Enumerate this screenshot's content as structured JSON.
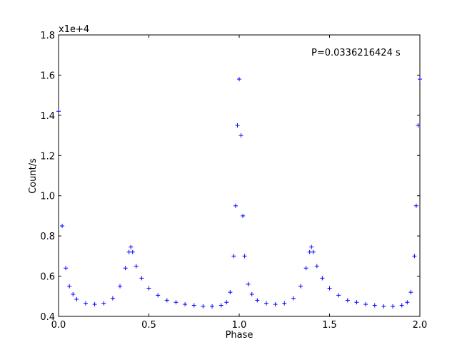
{
  "chart_data": {
    "type": "scatter",
    "title": "",
    "xlabel": "Phase",
    "ylabel": "Count/s",
    "y_scale_label": "x1e+4",
    "annotation": "P=0.0336216424 s",
    "xlim": [
      0.0,
      2.0
    ],
    "ylim": [
      0.4,
      1.8
    ],
    "x_ticks": [
      0.0,
      0.5,
      1.0,
      1.5,
      2.0
    ],
    "x_tick_labels": [
      "0.0",
      "0.5",
      "1.0",
      "1.5",
      "2.0"
    ],
    "y_ticks": [
      0.4,
      0.6,
      0.8,
      1.0,
      1.2,
      1.4,
      1.6,
      1.8
    ],
    "y_tick_labels": [
      "0.4",
      "0.6",
      "0.8",
      "1.0",
      "1.2",
      "1.4",
      "1.6",
      "1.8"
    ],
    "grid": false,
    "legend": "none",
    "marker": "plus",
    "color": "#0000ff",
    "series": [
      {
        "x": [
          0.0,
          0.02,
          0.04,
          0.06,
          0.08,
          0.1,
          0.15,
          0.2,
          0.25,
          0.3,
          0.34,
          0.37,
          0.39,
          0.4,
          0.41,
          0.43,
          0.46,
          0.5,
          0.55,
          0.6,
          0.65,
          0.7,
          0.75,
          0.8,
          0.85,
          0.9,
          0.93,
          0.95,
          0.97,
          0.98,
          0.99,
          1.0,
          1.01,
          1.02,
          1.03,
          1.05,
          1.07,
          1.1,
          1.15,
          1.2,
          1.25,
          1.3,
          1.34,
          1.37,
          1.39,
          1.4,
          1.41,
          1.43,
          1.46,
          1.5,
          1.55,
          1.6,
          1.65,
          1.7,
          1.75,
          1.8,
          1.85,
          1.9,
          1.93,
          1.95,
          1.97,
          1.98,
          1.99,
          2.0
        ],
        "y": [
          1.42,
          0.85,
          0.64,
          0.55,
          0.51,
          0.485,
          0.465,
          0.46,
          0.465,
          0.49,
          0.55,
          0.64,
          0.72,
          0.745,
          0.72,
          0.65,
          0.59,
          0.54,
          0.505,
          0.48,
          0.47,
          0.46,
          0.455,
          0.45,
          0.45,
          0.455,
          0.47,
          0.52,
          0.7,
          0.95,
          1.35,
          1.58,
          1.3,
          0.9,
          0.7,
          0.56,
          0.51,
          0.48,
          0.465,
          0.46,
          0.465,
          0.49,
          0.55,
          0.64,
          0.72,
          0.745,
          0.72,
          0.65,
          0.59,
          0.54,
          0.505,
          0.48,
          0.47,
          0.46,
          0.455,
          0.45,
          0.45,
          0.455,
          0.47,
          0.52,
          0.7,
          0.95,
          1.35,
          1.58
        ]
      }
    ]
  }
}
